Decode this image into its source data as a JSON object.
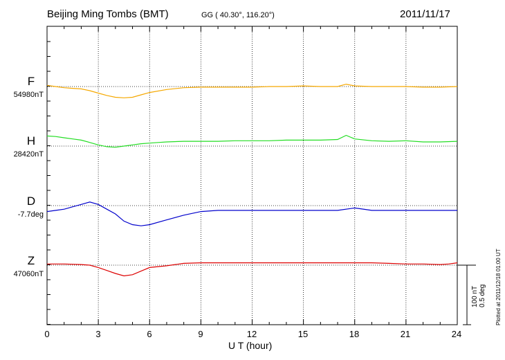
{
  "header": {
    "station": "Beijing Ming Tombs (BMT)",
    "coords": "GG ( 40.30°, 116.20°)",
    "date": "2011/11/17"
  },
  "scale": {
    "nt": "100 nT",
    "deg": "0.5 deg"
  },
  "plotted_note": "Plotted at 2011/12/18 01:00 UT",
  "chart_data": {
    "type": "line",
    "xlabel": "U T (hour)",
    "xlim": [
      0,
      24
    ],
    "xticks": [
      "0",
      "3",
      "6",
      "9",
      "12",
      "15",
      "18",
      "21",
      "24"
    ],
    "grid": true,
    "series": [
      {
        "name": "F",
        "baseline_label": "54980nT",
        "color": "#f5a800",
        "x": [
          0,
          0.5,
          1,
          1.5,
          2,
          2.5,
          3,
          3.5,
          4,
          4.5,
          5,
          5.5,
          6,
          7,
          8,
          9,
          10,
          11,
          12,
          13,
          14,
          15,
          16,
          17,
          17.5,
          18,
          19,
          20,
          21,
          22,
          23,
          24
        ],
        "y": [
          2,
          0,
          -2,
          -3,
          -4,
          -7,
          -11,
          -15,
          -18,
          -19,
          -18,
          -14,
          -10,
          -5,
          -2,
          -1,
          -1,
          -1,
          -1,
          0,
          0,
          1,
          0,
          0,
          4,
          1,
          0,
          0,
          0,
          -1,
          -1,
          0
        ]
      },
      {
        "name": "H",
        "baseline_label": "28420nT",
        "color": "#22dd22",
        "x": [
          0,
          0.5,
          1,
          1.5,
          2,
          2.5,
          3,
          3.5,
          4,
          4.5,
          5,
          5.5,
          6,
          6.5,
          7,
          8,
          9,
          10,
          11,
          12,
          13,
          14,
          15,
          16,
          17,
          17.5,
          18,
          19,
          20,
          21,
          22,
          23,
          24
        ],
        "y": [
          17,
          16,
          14,
          12,
          10,
          6,
          2,
          -1,
          -2,
          0,
          2,
          4,
          5,
          6,
          7,
          8,
          8,
          8,
          9,
          9,
          9,
          10,
          10,
          10,
          11,
          18,
          12,
          9,
          8,
          9,
          7,
          7,
          8
        ]
      },
      {
        "name": "D",
        "baseline_label": "-7.7deg",
        "color": "#0000cc",
        "x": [
          0,
          0.5,
          1,
          1.5,
          2,
          2.5,
          3,
          3.5,
          4,
          4.5,
          5,
          5.5,
          6,
          7,
          8,
          9,
          10,
          11,
          12,
          13,
          14,
          15,
          16,
          17,
          18,
          19,
          20,
          21,
          22,
          23,
          24
        ],
        "y": [
          -0.05,
          -0.04,
          -0.03,
          -0.01,
          0.01,
          0.03,
          0.01,
          -0.03,
          -0.07,
          -0.13,
          -0.16,
          -0.17,
          -0.16,
          -0.12,
          -0.08,
          -0.05,
          -0.04,
          -0.04,
          -0.04,
          -0.04,
          -0.04,
          -0.04,
          -0.04,
          -0.04,
          -0.02,
          -0.04,
          -0.04,
          -0.04,
          -0.04,
          -0.04,
          -0.04
        ]
      },
      {
        "name": "Z",
        "baseline_label": "47060nT",
        "color": "#dd0000",
        "x": [
          0,
          1,
          2,
          2.5,
          3,
          3.5,
          4,
          4.5,
          5,
          5.5,
          6,
          7,
          8,
          9,
          10,
          11,
          12,
          13,
          14,
          15,
          16,
          17,
          18,
          19,
          20,
          21,
          22,
          23,
          23.5,
          24
        ],
        "y": [
          2,
          2,
          1,
          0,
          -4,
          -9,
          -14,
          -18,
          -16,
          -10,
          -4,
          -1,
          3,
          4,
          4,
          4,
          4,
          4,
          4,
          4,
          4,
          4,
          4,
          4,
          3,
          2,
          2,
          1,
          2,
          4
        ]
      }
    ]
  }
}
